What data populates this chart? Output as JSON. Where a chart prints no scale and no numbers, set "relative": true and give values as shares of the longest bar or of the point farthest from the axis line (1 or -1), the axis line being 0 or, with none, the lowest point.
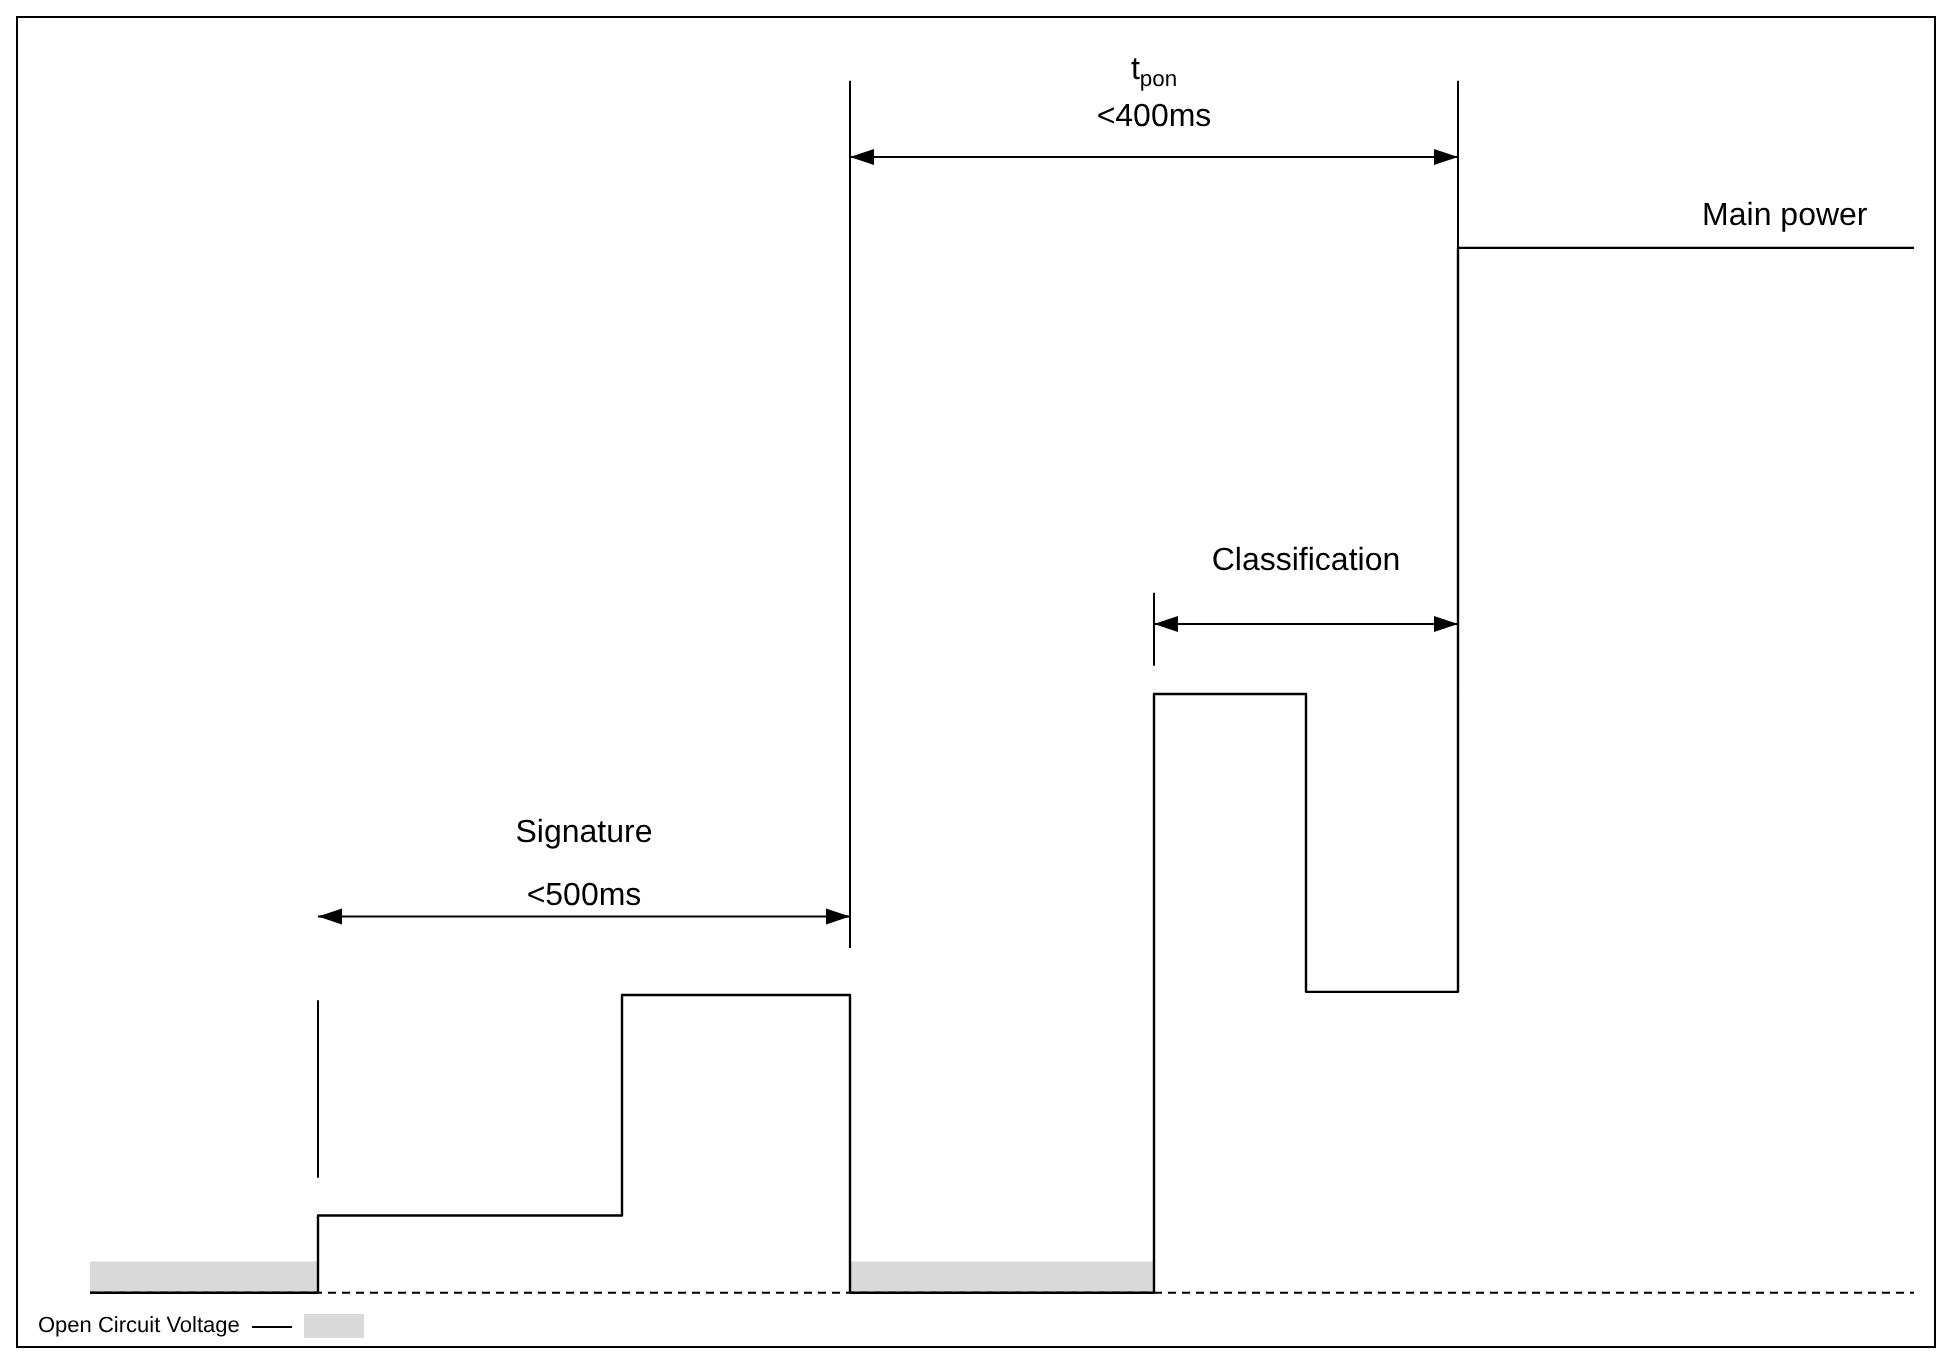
{
  "chart_data": {
    "type": "step",
    "relative": true,
    "categories": [
      null,
      null,
      null,
      null,
      null,
      null,
      null,
      null,
      null,
      null,
      null,
      null,
      null,
      null,
      null,
      null,
      null,
      null,
      null,
      null,
      null,
      null,
      null,
      null,
      null
    ],
    "series": [
      {
        "color": "#000000",
        "values": [
          0,
          0,
          0,
          0.074,
          0.074,
          0.074,
          0.074,
          0.285,
          0.285,
          0.285,
          0,
          0,
          0,
          0,
          0.573,
          0.573,
          0.288,
          0.288,
          1,
          1,
          1,
          1,
          1,
          1,
          1
        ]
      },
      {
        "type": "area",
        "name": "Open Circuit Voltage",
        "color": "#d9d9d9",
        "values": [
          0.03,
          0.03,
          0.03,
          0.03,
          null,
          null,
          null,
          null,
          null,
          null,
          0.03,
          0.03,
          0.03,
          0.03,
          0.03,
          null,
          null,
          null,
          null,
          null,
          null,
          null,
          null,
          null,
          null
        ]
      }
    ],
    "ref_lines": [
      {
        "axis": "y",
        "value": 0,
        "color": "#000000",
        "line_style": "dashed"
      }
    ],
    "annotations": [
      "Signature",
      "<500ms",
      "t$_{pon}$",
      "<400ms",
      "Classification",
      "Main power"
    ],
    "grid": false,
    "tick_labels": false,
    "legend": "bottom left"
  }
}
